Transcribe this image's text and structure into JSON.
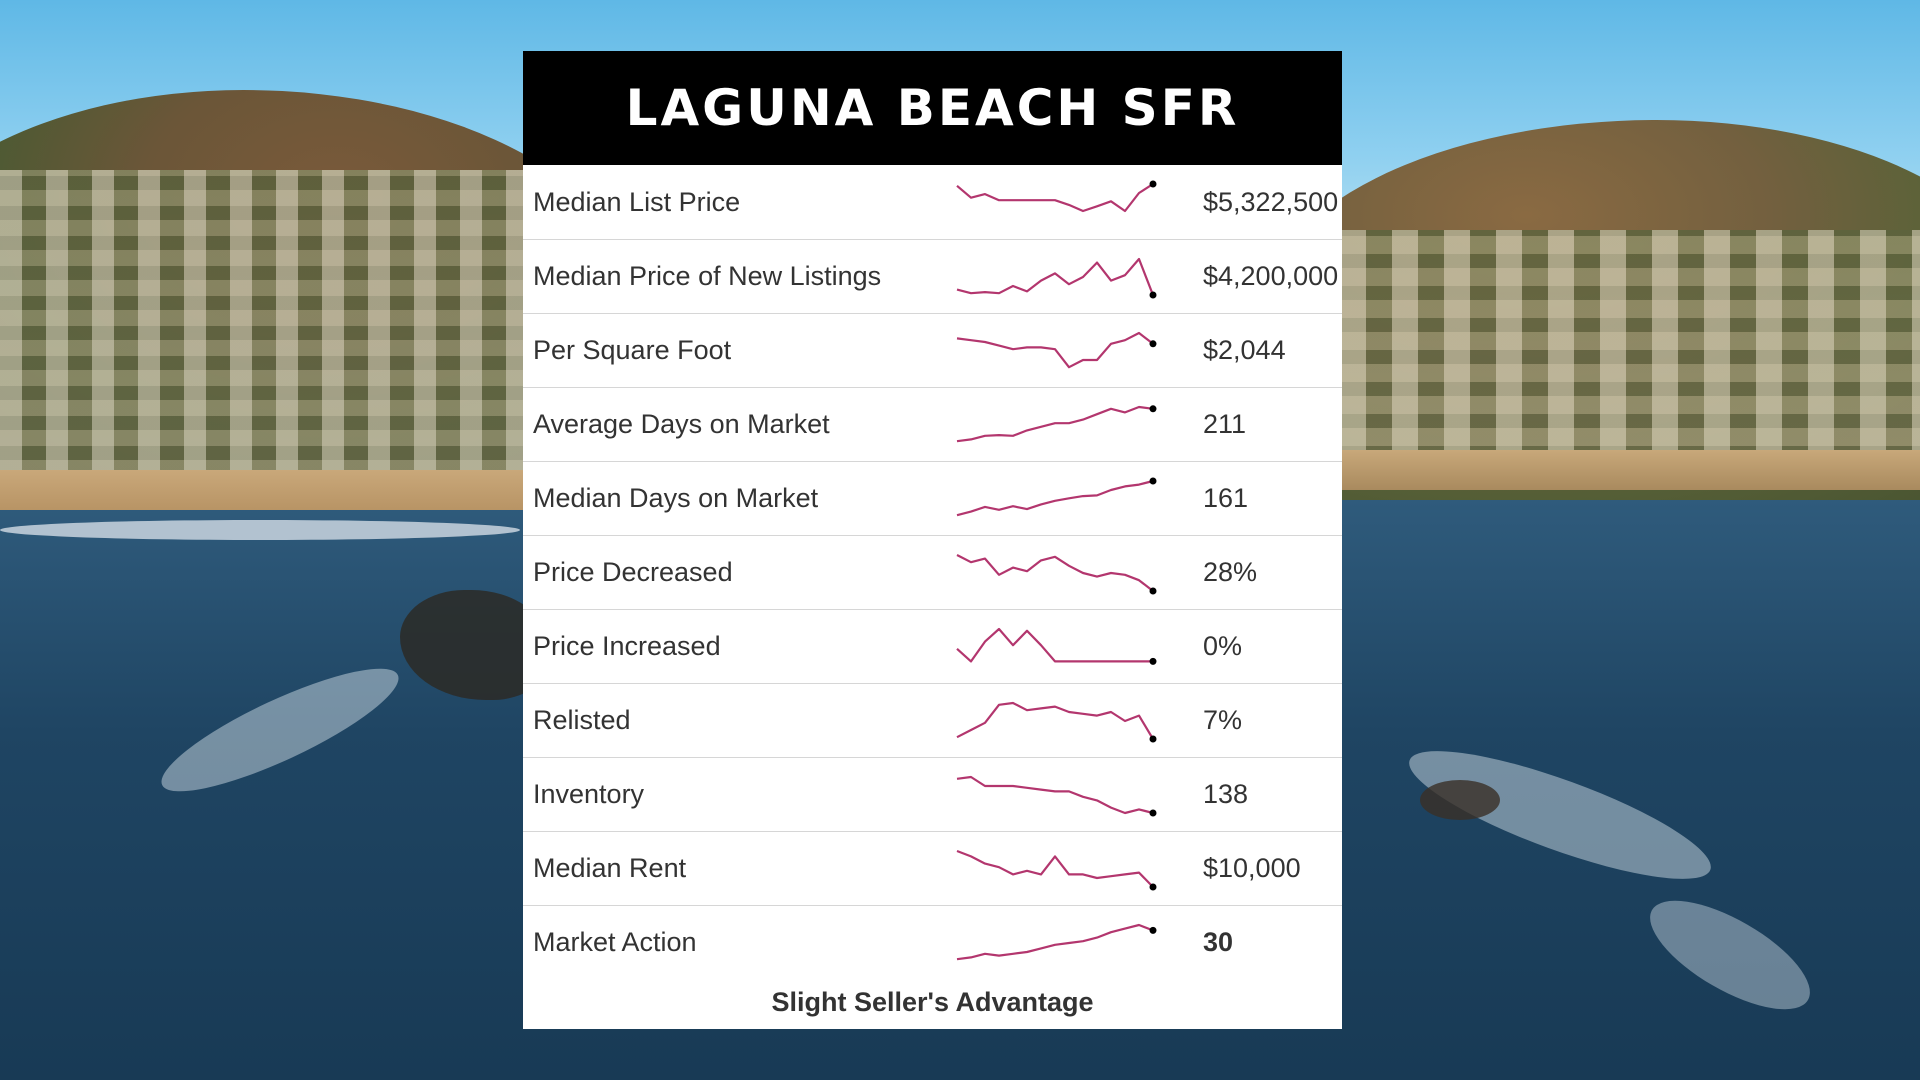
{
  "card": {
    "title": "LAGUNA BEACH SFR",
    "footer": "Slight Seller's Advantage"
  },
  "colors": {
    "spark_line": "#b3366e",
    "spark_dot": "#000000",
    "header_bg": "#000000"
  },
  "rows": [
    {
      "label": "Median List Price",
      "value": "$5,322,500",
      "trend": [
        0.95,
        0.62,
        0.72,
        0.55,
        0.55,
        0.55,
        0.55,
        0.55,
        0.42,
        0.25,
        0.38,
        0.52,
        0.25,
        0.75,
        1.0
      ]
    },
    {
      "label": "Median Price of New Listings",
      "value": "$4,200,000",
      "trend": [
        0.15,
        0.05,
        0.08,
        0.05,
        0.25,
        0.1,
        0.4,
        0.6,
        0.3,
        0.5,
        0.9,
        0.4,
        0.55,
        1.0,
        0.0
      ]
    },
    {
      "label": "Per Square Foot",
      "value": "$2,044",
      "trend": [
        0.85,
        0.8,
        0.75,
        0.65,
        0.55,
        0.6,
        0.6,
        0.55,
        0.05,
        0.25,
        0.25,
        0.7,
        0.8,
        1.0,
        0.7
      ]
    },
    {
      "label": "Average Days on Market",
      "value": "211",
      "trend": [
        0.05,
        0.1,
        0.2,
        0.22,
        0.2,
        0.35,
        0.45,
        0.55,
        0.55,
        0.65,
        0.8,
        0.95,
        0.85,
        1.0,
        0.95
      ]
    },
    {
      "label": "Median Days on Market",
      "value": "161",
      "trend": [
        0.05,
        0.15,
        0.28,
        0.2,
        0.3,
        0.22,
        0.35,
        0.45,
        0.52,
        0.58,
        0.6,
        0.75,
        0.85,
        0.9,
        1.0
      ]
    },
    {
      "label": "Price Decreased",
      "value": "28%",
      "trend": [
        1.0,
        0.8,
        0.9,
        0.45,
        0.65,
        0.55,
        0.85,
        0.95,
        0.7,
        0.5,
        0.4,
        0.5,
        0.45,
        0.3,
        0.0
      ]
    },
    {
      "label": "Price Increased",
      "value": "0%",
      "trend": [
        0.45,
        0.1,
        0.65,
        1.0,
        0.55,
        0.95,
        0.55,
        0.1,
        0.1,
        0.1,
        0.1,
        0.1,
        0.1,
        0.1,
        0.1
      ]
    },
    {
      "label": "Relisted",
      "value": "7%",
      "trend": [
        0.05,
        0.25,
        0.45,
        0.95,
        1.0,
        0.8,
        0.85,
        0.9,
        0.75,
        0.7,
        0.65,
        0.75,
        0.5,
        0.65,
        0.0
      ]
    },
    {
      "label": "Inventory",
      "value": "138",
      "trend": [
        0.95,
        1.0,
        0.75,
        0.75,
        0.75,
        0.7,
        0.65,
        0.6,
        0.6,
        0.45,
        0.35,
        0.15,
        0.0,
        0.1,
        0.0
      ]
    },
    {
      "label": "Median Rent",
      "value": "$10,000",
      "trend": [
        1.0,
        0.85,
        0.65,
        0.55,
        0.35,
        0.45,
        0.35,
        0.85,
        0.35,
        0.35,
        0.25,
        0.3,
        0.35,
        0.4,
        0.0
      ]
    },
    {
      "label": "Market Action",
      "value": "30",
      "bold": true,
      "trend": [
        0.05,
        0.1,
        0.2,
        0.15,
        0.2,
        0.25,
        0.35,
        0.45,
        0.5,
        0.55,
        0.65,
        0.8,
        0.9,
        1.0,
        0.85
      ]
    }
  ]
}
